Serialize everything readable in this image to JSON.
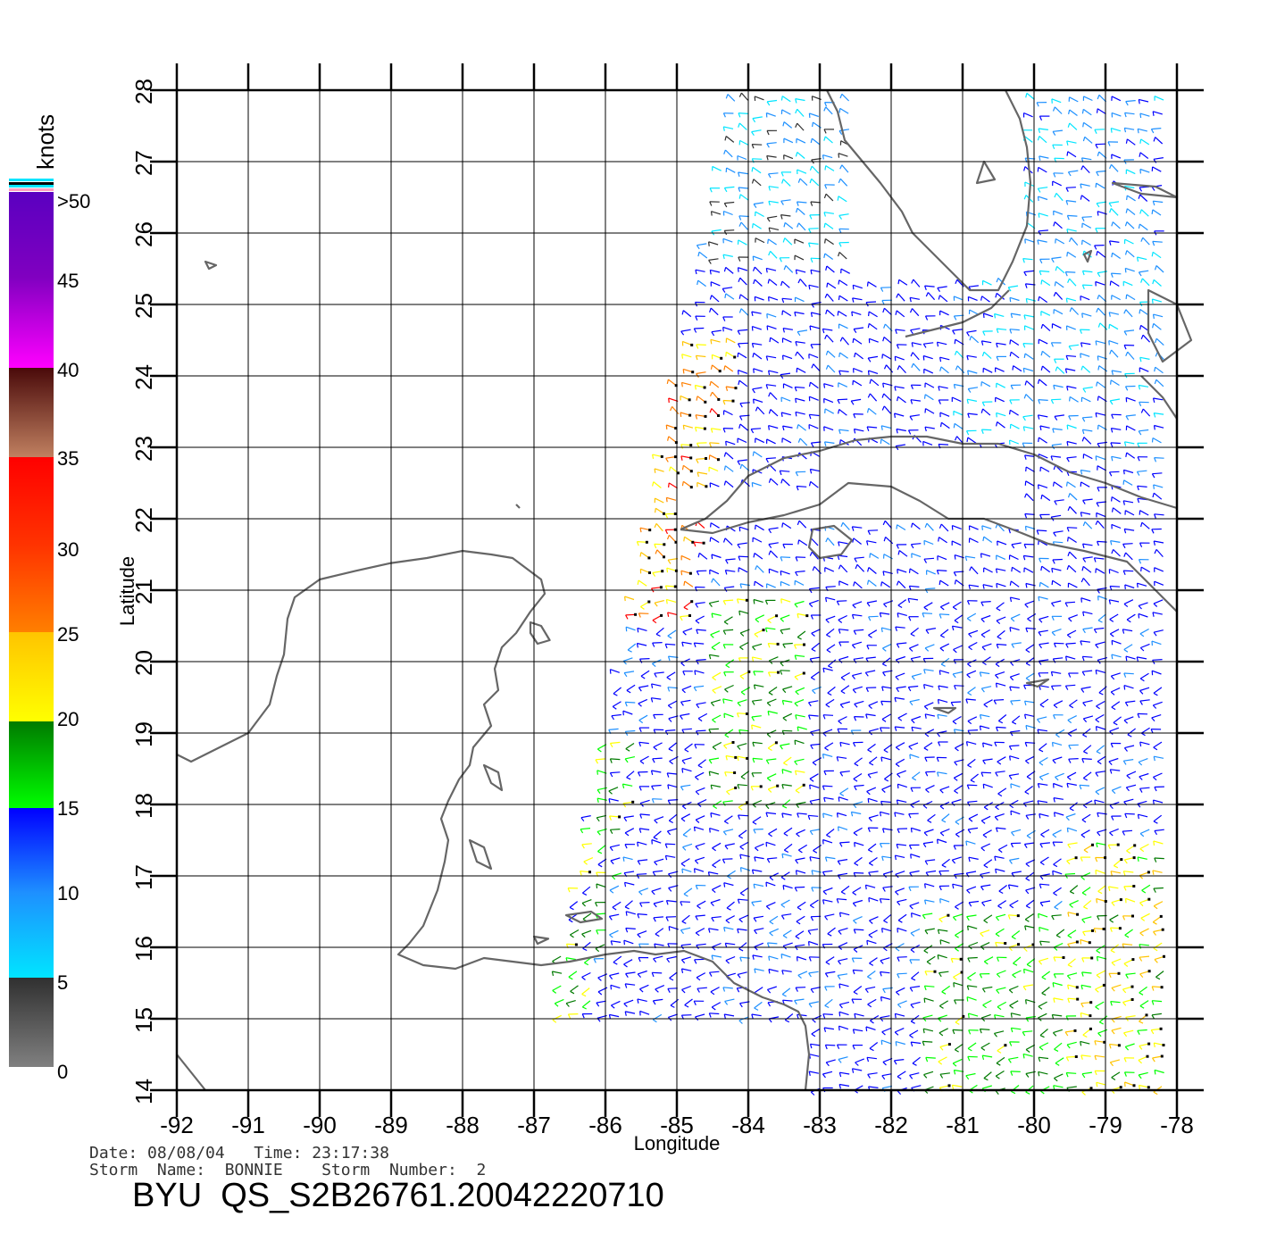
{
  "map": {
    "xlabel": "Longitude",
    "ylabel": "Latitude",
    "lon_range": [
      -92,
      -78
    ],
    "lat_range": [
      14,
      28
    ],
    "lon_ticks": [
      "-92",
      "-91",
      "-90",
      "-89",
      "-88",
      "-87",
      "-86",
      "-85",
      "-84",
      "-83",
      "-82",
      "-81",
      "-80",
      "-79",
      "-78"
    ],
    "lat_ticks": [
      "14",
      "15",
      "16",
      "17",
      "18",
      "19",
      "20",
      "21",
      "22",
      "23",
      "24",
      "25",
      "26",
      "27",
      "28"
    ],
    "grid": true,
    "coastline_color": "#666666",
    "wind_barbs": "QuikSCAT wind vectors colored by speed"
  },
  "colorbar": {
    "unit_label": "knots",
    "labels": [
      "0",
      "5",
      "10",
      "15",
      "20",
      "25",
      "30",
      "35",
      "40",
      "45",
      ">50"
    ],
    "colors": {
      "gray": "#808080",
      "dark": "#303030",
      "cyan": "#00e5ff",
      "lightblue": "#1e90ff",
      "blue": "#0000ff",
      "darkgreen": "#007a00",
      "green": "#00ff00",
      "yellow": "#ffff00",
      "gold": "#ffc400",
      "orange": "#ff7f00",
      "redorange": "#ff3300",
      "red": "#ff0000",
      "tan": "#c08060",
      "brown": "#4a0a0a",
      "magenta": "#ff00ff",
      "purple": "#8000c0",
      "violet": "#5a00c0"
    }
  },
  "footer": {
    "date_line": "Date: 08/08/04   Time: 23:17:38",
    "storm_line": "Storm  Name:  BONNIE    Storm  Number:  2",
    "title": "BYU  QS_S2B26761.20042220710"
  }
}
